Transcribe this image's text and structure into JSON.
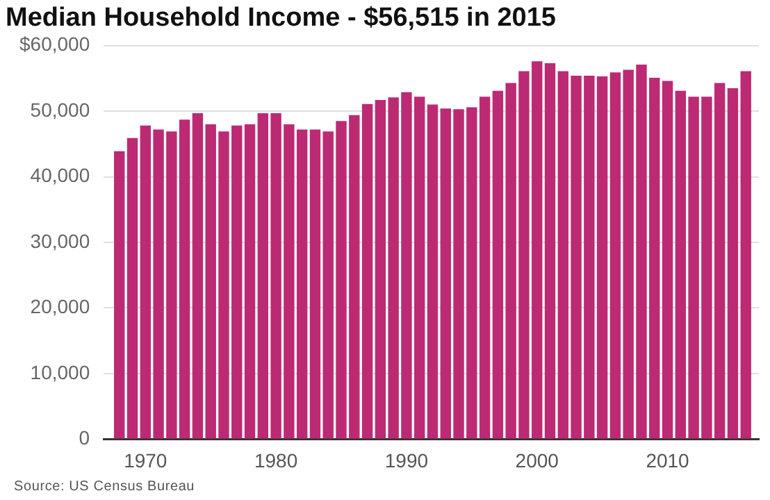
{
  "chart_data": {
    "type": "bar",
    "title": "Median Household Income - $56,515 in 2015",
    "x": [
      1968,
      1969,
      1970,
      1971,
      1972,
      1973,
      1974,
      1975,
      1976,
      1977,
      1978,
      1979,
      1980,
      1981,
      1982,
      1983,
      1984,
      1985,
      1986,
      1987,
      1988,
      1989,
      1990,
      1991,
      1992,
      1993,
      1994,
      1995,
      1996,
      1997,
      1998,
      1999,
      2000,
      2001,
      2002,
      2003,
      2004,
      2005,
      2006,
      2007,
      2008,
      2009,
      2010,
      2011,
      2012,
      2013,
      2014,
      2015,
      2016
    ],
    "values": [
      43900,
      45900,
      47800,
      47200,
      46900,
      48700,
      49700,
      48000,
      46900,
      47800,
      48000,
      49700,
      49700,
      48000,
      47200,
      47200,
      46900,
      48500,
      49400,
      51100,
      51700,
      52100,
      52900,
      52200,
      51000,
      50400,
      50300,
      50600,
      52200,
      53100,
      54300,
      56100,
      57600,
      57300,
      56100,
      55400,
      55400,
      55300,
      55900,
      56300,
      57100,
      55100,
      54600,
      53100,
      52200,
      52200,
      54300,
      53500,
      56100
    ],
    "color": "#bc2a74",
    "xlim": [
      1966.8,
      2017
    ],
    "xticks": [
      1970,
      1980,
      1990,
      2000,
      2010
    ],
    "ylim": [
      0,
      60000
    ],
    "yticks": [
      0,
      {
        "value": 10000,
        "label": "10,000"
      },
      {
        "value": 20000,
        "label": "20,000"
      },
      {
        "value": 30000,
        "label": "30,000"
      },
      {
        "value": 40000,
        "label": "40,000"
      },
      {
        "value": 50000,
        "label": "50,000"
      },
      {
        "value": 60000,
        "label": "$60,000"
      }
    ],
    "grid": "y",
    "legend": false,
    "annotations": [
      "Source: US Census Bureau"
    ]
  }
}
